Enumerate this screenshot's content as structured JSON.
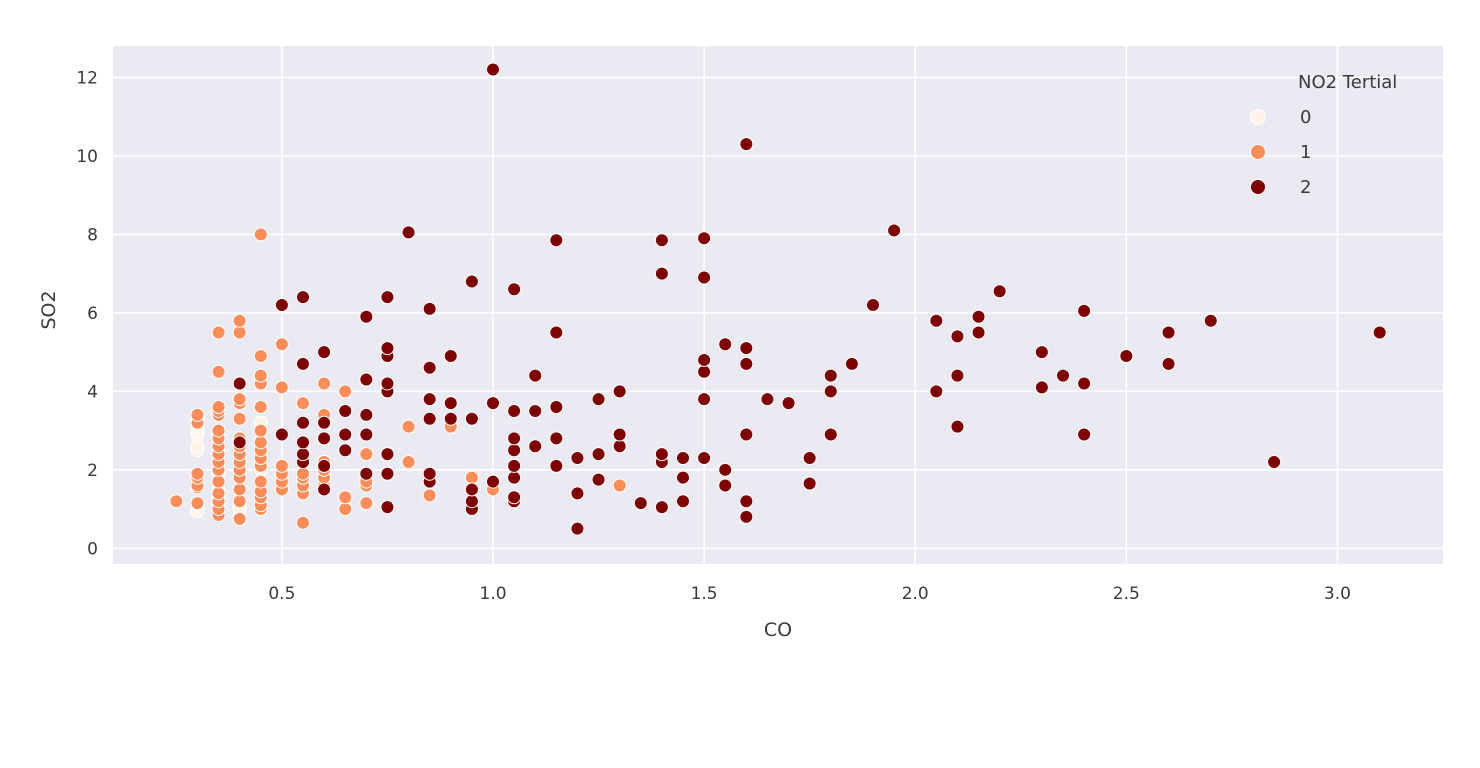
{
  "chart_data": {
    "type": "scatter",
    "xlabel": "CO",
    "ylabel": "SO2",
    "xlim": [
      0.1,
      3.25
    ],
    "ylim": [
      -0.4,
      12.8
    ],
    "xticks": [
      "0.5",
      "1.0",
      "1.5",
      "2.0",
      "2.5",
      "3.0"
    ],
    "xtick_values": [
      0.5,
      1.0,
      1.5,
      2.0,
      2.5,
      3.0
    ],
    "yticks": [
      "0",
      "2",
      "4",
      "6",
      "8",
      "10",
      "12"
    ],
    "ytick_values": [
      0,
      2,
      4,
      6,
      8,
      10,
      12
    ],
    "grid": true,
    "background": "#EAEAF2",
    "legend": {
      "title": "NO2 Tertial",
      "position": "top-right"
    },
    "series": [
      {
        "name": "0",
        "color": "#FFF3E8",
        "points": [
          [
            0.3,
            0.95
          ],
          [
            0.3,
            1.1
          ],
          [
            0.3,
            2.5
          ],
          [
            0.3,
            2.6
          ],
          [
            0.3,
            2.9
          ],
          [
            0.3,
            3.0
          ],
          [
            0.3,
            3.1
          ],
          [
            0.3,
            3.3
          ],
          [
            0.35,
            1.1
          ],
          [
            0.35,
            1.3
          ],
          [
            0.35,
            1.5
          ],
          [
            0.35,
            1.9
          ],
          [
            0.35,
            2.2
          ],
          [
            0.35,
            2.5
          ],
          [
            0.35,
            2.9
          ],
          [
            0.4,
            0.85
          ],
          [
            0.4,
            1.0
          ],
          [
            0.4,
            1.05
          ],
          [
            0.4,
            1.9
          ],
          [
            0.4,
            2.3
          ],
          [
            0.4,
            2.8
          ],
          [
            0.45,
            1.3
          ],
          [
            0.45,
            2.0
          ],
          [
            0.45,
            3.0
          ],
          [
            0.45,
            3.2
          ]
        ]
      },
      {
        "name": "1",
        "color": "#FC8D59",
        "points": [
          [
            0.25,
            1.2
          ],
          [
            0.3,
            1.15
          ],
          [
            0.3,
            1.55
          ],
          [
            0.3,
            1.6
          ],
          [
            0.3,
            1.8
          ],
          [
            0.3,
            1.9
          ],
          [
            0.3,
            3.2
          ],
          [
            0.3,
            3.4
          ],
          [
            0.35,
            0.85
          ],
          [
            0.35,
            1.0
          ],
          [
            0.35,
            1.2
          ],
          [
            0.35,
            1.4
          ],
          [
            0.35,
            1.7
          ],
          [
            0.35,
            2.0
          ],
          [
            0.35,
            2.2
          ],
          [
            0.35,
            2.4
          ],
          [
            0.35,
            2.6
          ],
          [
            0.35,
            2.8
          ],
          [
            0.35,
            3.0
          ],
          [
            0.35,
            3.4
          ],
          [
            0.35,
            3.5
          ],
          [
            0.35,
            3.6
          ],
          [
            0.35,
            4.5
          ],
          [
            0.35,
            5.5
          ],
          [
            0.4,
            0.75
          ],
          [
            0.4,
            1.2
          ],
          [
            0.4,
            1.5
          ],
          [
            0.4,
            1.8
          ],
          [
            0.4,
            2.0
          ],
          [
            0.4,
            2.2
          ],
          [
            0.4,
            2.4
          ],
          [
            0.4,
            2.6
          ],
          [
            0.4,
            2.8
          ],
          [
            0.4,
            3.3
          ],
          [
            0.4,
            3.7
          ],
          [
            0.4,
            3.8
          ],
          [
            0.4,
            5.5
          ],
          [
            0.4,
            5.8
          ],
          [
            0.45,
            1.0
          ],
          [
            0.45,
            1.1
          ],
          [
            0.45,
            1.3
          ],
          [
            0.45,
            1.45
          ],
          [
            0.45,
            1.7
          ],
          [
            0.45,
            2.1
          ],
          [
            0.45,
            2.3
          ],
          [
            0.45,
            2.5
          ],
          [
            0.45,
            2.7
          ],
          [
            0.45,
            3.0
          ],
          [
            0.45,
            3.6
          ],
          [
            0.45,
            4.2
          ],
          [
            0.45,
            4.4
          ],
          [
            0.45,
            4.9
          ],
          [
            0.45,
            8.0
          ],
          [
            0.5,
            1.5
          ],
          [
            0.5,
            1.7
          ],
          [
            0.5,
            1.9
          ],
          [
            0.5,
            2.1
          ],
          [
            0.5,
            2.9
          ],
          [
            0.5,
            4.1
          ],
          [
            0.5,
            5.2
          ],
          [
            0.55,
            0.65
          ],
          [
            0.55,
            1.4
          ],
          [
            0.55,
            1.6
          ],
          [
            0.55,
            1.8
          ],
          [
            0.55,
            1.9
          ],
          [
            0.55,
            3.7
          ],
          [
            0.6,
            1.6
          ],
          [
            0.6,
            1.8
          ],
          [
            0.6,
            2.0
          ],
          [
            0.6,
            2.2
          ],
          [
            0.6,
            3.3
          ],
          [
            0.6,
            3.4
          ],
          [
            0.6,
            4.2
          ],
          [
            0.65,
            1.0
          ],
          [
            0.65,
            1.3
          ],
          [
            0.65,
            4.0
          ],
          [
            0.7,
            1.15
          ],
          [
            0.7,
            1.6
          ],
          [
            0.7,
            1.7
          ],
          [
            0.7,
            2.4
          ],
          [
            0.8,
            2.2
          ],
          [
            0.8,
            3.1
          ],
          [
            0.85,
            1.35
          ],
          [
            0.9,
            3.1
          ],
          [
            0.95,
            1.8
          ],
          [
            1.0,
            1.5
          ],
          [
            1.3,
            1.6
          ]
        ]
      },
      {
        "name": "2",
        "color": "#7F0000",
        "points": [
          [
            0.4,
            2.7
          ],
          [
            0.4,
            4.2
          ],
          [
            0.5,
            2.9
          ],
          [
            0.5,
            6.2
          ],
          [
            0.55,
            2.2
          ],
          [
            0.55,
            2.4
          ],
          [
            0.55,
            2.7
          ],
          [
            0.55,
            3.2
          ],
          [
            0.55,
            4.7
          ],
          [
            0.55,
            6.4
          ],
          [
            0.6,
            1.5
          ],
          [
            0.6,
            2.1
          ],
          [
            0.6,
            2.8
          ],
          [
            0.6,
            3.2
          ],
          [
            0.6,
            5.0
          ],
          [
            0.65,
            2.5
          ],
          [
            0.65,
            2.9
          ],
          [
            0.65,
            3.5
          ],
          [
            0.7,
            1.9
          ],
          [
            0.7,
            2.9
          ],
          [
            0.7,
            3.4
          ],
          [
            0.7,
            4.3
          ],
          [
            0.7,
            5.9
          ],
          [
            0.75,
            1.05
          ],
          [
            0.75,
            1.9
          ],
          [
            0.75,
            2.4
          ],
          [
            0.75,
            4.0
          ],
          [
            0.75,
            4.2
          ],
          [
            0.75,
            4.9
          ],
          [
            0.75,
            5.1
          ],
          [
            0.75,
            6.4
          ],
          [
            0.8,
            8.05
          ],
          [
            0.85,
            1.7
          ],
          [
            0.85,
            1.9
          ],
          [
            0.85,
            3.3
          ],
          [
            0.85,
            3.8
          ],
          [
            0.85,
            4.6
          ],
          [
            0.85,
            6.1
          ],
          [
            0.9,
            3.3
          ],
          [
            0.9,
            3.7
          ],
          [
            0.9,
            4.9
          ],
          [
            0.95,
            1.0
          ],
          [
            0.95,
            1.2
          ],
          [
            0.95,
            1.5
          ],
          [
            0.95,
            3.3
          ],
          [
            0.95,
            6.8
          ],
          [
            1.0,
            1.7
          ],
          [
            1.0,
            3.7
          ],
          [
            1.0,
            12.2
          ],
          [
            1.05,
            1.2
          ],
          [
            1.05,
            1.3
          ],
          [
            1.05,
            1.8
          ],
          [
            1.05,
            2.1
          ],
          [
            1.05,
            2.5
          ],
          [
            1.05,
            2.8
          ],
          [
            1.05,
            3.5
          ],
          [
            1.05,
            6.6
          ],
          [
            1.1,
            2.6
          ],
          [
            1.1,
            3.5
          ],
          [
            1.1,
            4.4
          ],
          [
            1.15,
            2.1
          ],
          [
            1.15,
            2.8
          ],
          [
            1.15,
            3.6
          ],
          [
            1.15,
            5.5
          ],
          [
            1.15,
            7.85
          ],
          [
            1.2,
            0.5
          ],
          [
            1.2,
            1.4
          ],
          [
            1.2,
            2.3
          ],
          [
            1.25,
            1.75
          ],
          [
            1.25,
            2.4
          ],
          [
            1.25,
            3.8
          ],
          [
            1.3,
            2.6
          ],
          [
            1.3,
            2.9
          ],
          [
            1.3,
            4.0
          ],
          [
            1.35,
            1.15
          ],
          [
            1.4,
            1.05
          ],
          [
            1.4,
            2.2
          ],
          [
            1.4,
            2.4
          ],
          [
            1.4,
            7.0
          ],
          [
            1.4,
            7.85
          ],
          [
            1.45,
            1.2
          ],
          [
            1.45,
            1.8
          ],
          [
            1.45,
            2.3
          ],
          [
            1.5,
            2.3
          ],
          [
            1.5,
            3.8
          ],
          [
            1.5,
            4.5
          ],
          [
            1.5,
            4.8
          ],
          [
            1.5,
            6.9
          ],
          [
            1.5,
            7.9
          ],
          [
            1.55,
            1.6
          ],
          [
            1.55,
            2.0
          ],
          [
            1.55,
            5.2
          ],
          [
            1.6,
            0.8
          ],
          [
            1.6,
            1.2
          ],
          [
            1.6,
            2.9
          ],
          [
            1.6,
            4.7
          ],
          [
            1.6,
            5.1
          ],
          [
            1.6,
            10.3
          ],
          [
            1.65,
            3.8
          ],
          [
            1.7,
            3.7
          ],
          [
            1.75,
            1.65
          ],
          [
            1.75,
            2.3
          ],
          [
            1.8,
            2.9
          ],
          [
            1.8,
            4.0
          ],
          [
            1.8,
            4.4
          ],
          [
            1.85,
            4.7
          ],
          [
            1.9,
            6.2
          ],
          [
            1.95,
            8.1
          ],
          [
            2.05,
            4.0
          ],
          [
            2.05,
            5.8
          ],
          [
            2.1,
            3.1
          ],
          [
            2.1,
            4.4
          ],
          [
            2.1,
            5.4
          ],
          [
            2.15,
            5.5
          ],
          [
            2.15,
            5.9
          ],
          [
            2.2,
            6.55
          ],
          [
            2.3,
            4.1
          ],
          [
            2.3,
            5.0
          ],
          [
            2.35,
            4.4
          ],
          [
            2.4,
            2.9
          ],
          [
            2.4,
            4.2
          ],
          [
            2.4,
            6.05
          ],
          [
            2.5,
            4.9
          ],
          [
            2.6,
            4.7
          ],
          [
            2.6,
            5.5
          ],
          [
            2.7,
            5.8
          ],
          [
            2.85,
            2.2
          ],
          [
            3.1,
            5.5
          ]
        ]
      }
    ]
  }
}
